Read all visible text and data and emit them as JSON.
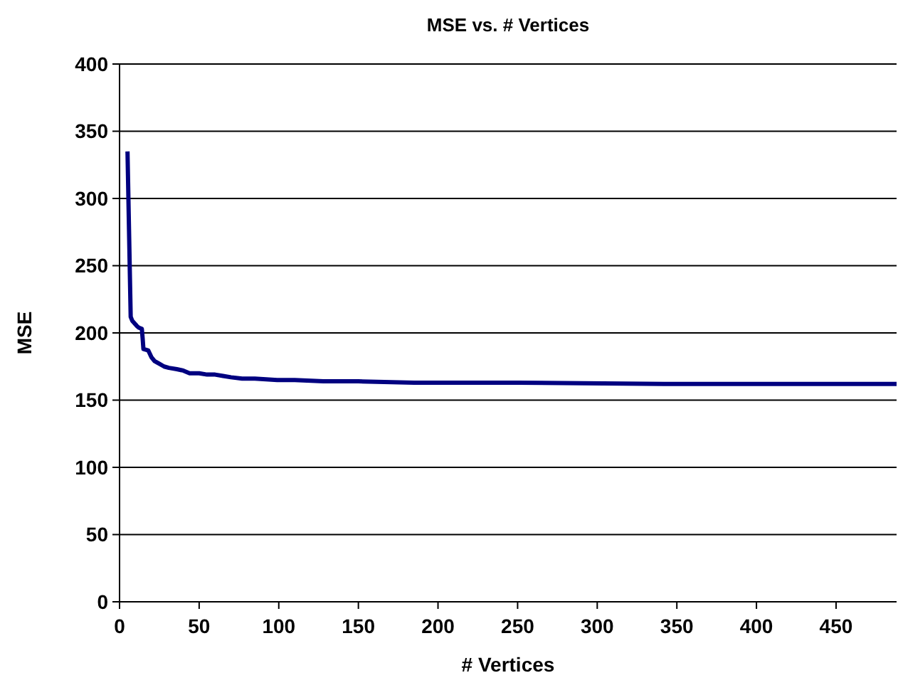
{
  "chart_data": {
    "type": "line",
    "title": "MSE vs. # Vertices",
    "xlabel": "# Vertices",
    "ylabel": "MSE",
    "xlim": [
      0,
      488
    ],
    "ylim": [
      0,
      400
    ],
    "xticks": [
      0,
      50,
      100,
      150,
      200,
      250,
      300,
      350,
      400,
      450
    ],
    "yticks": [
      0,
      50,
      100,
      150,
      200,
      250,
      300,
      350,
      400
    ],
    "grid": "y",
    "marker": "none",
    "line_style": "solid",
    "series": [
      {
        "color": "#000080",
        "x": [
          5,
          7,
          8,
          11,
          12,
          14,
          14.5,
          15,
          18,
          20,
          22,
          25,
          28,
          31,
          36,
          40,
          44,
          50,
          55,
          60,
          65,
          70,
          77,
          85,
          99,
          110,
          128,
          150,
          185,
          250,
          342,
          400,
          488
        ],
        "values": [
          335,
          212,
          209,
          205,
          204,
          203,
          196,
          188,
          187,
          182,
          179,
          177,
          175,
          174,
          173,
          172,
          170,
          170,
          169,
          169,
          168,
          167,
          166,
          166,
          165,
          165,
          164,
          164,
          163,
          163,
          162,
          162,
          162
        ]
      }
    ]
  }
}
